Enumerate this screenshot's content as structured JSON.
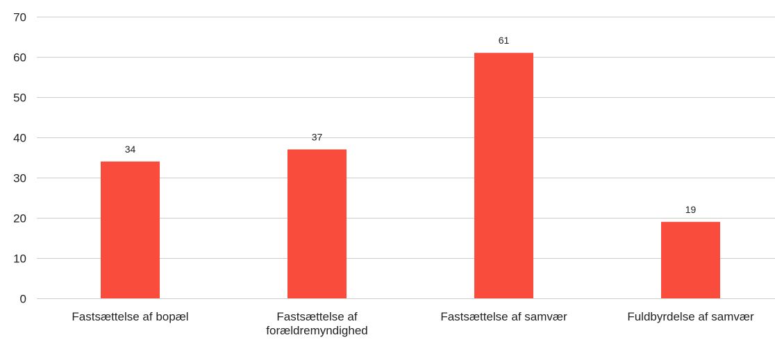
{
  "chart_data": {
    "type": "bar",
    "categories": [
      [
        "Fastsættelse af bopæl"
      ],
      [
        "Fastsættelse af",
        "forældremyndighed"
      ],
      [
        "Fastsættelse af samvær"
      ],
      [
        "Fuldbyrdelse af samvær"
      ]
    ],
    "values": [
      34,
      37,
      61,
      19
    ],
    "data_labels": [
      "34",
      "37",
      "61",
      "19"
    ],
    "y_ticks": [
      0,
      10,
      20,
      30,
      40,
      50,
      60,
      70
    ],
    "ylim": [
      0,
      70
    ],
    "grid": true,
    "legend": "none",
    "bar_color": "#f94c3c",
    "grid_color": "#cccccc",
    "title": "",
    "xlabel": "",
    "ylabel": ""
  }
}
